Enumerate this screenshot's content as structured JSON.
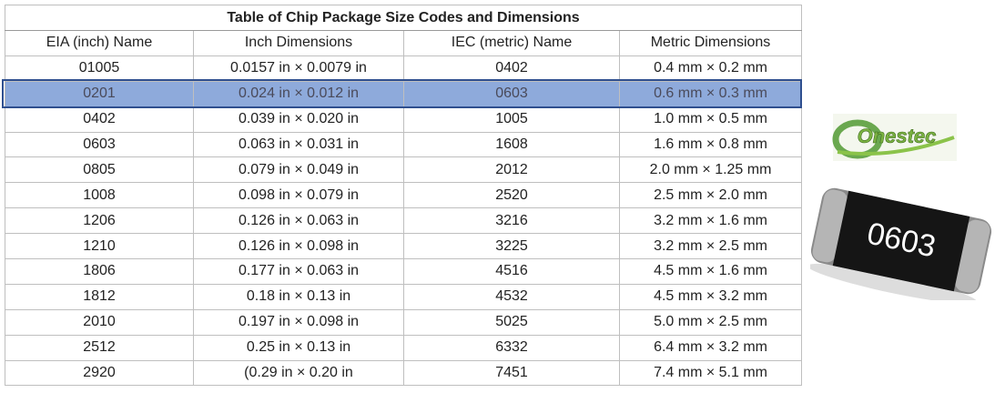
{
  "table": {
    "title": "Table of Chip Package Size Codes and Dimensions",
    "headers": [
      "EIA (inch) Name",
      "Inch Dimensions",
      "IEC (metric) Name",
      "Metric Dimensions"
    ],
    "rows": [
      [
        "01005",
        "0.0157 in × 0.0079 in",
        "0402",
        "0.4 mm × 0.2 mm"
      ],
      [
        "0201",
        "0.024 in × 0.012 in",
        "0603",
        "0.6 mm × 0.3 mm"
      ],
      [
        "0402",
        "0.039 in × 0.020 in",
        "1005",
        "1.0 mm × 0.5 mm"
      ],
      [
        "0603",
        "0.063 in × 0.031 in",
        "1608",
        "1.6 mm × 0.8 mm"
      ],
      [
        "0805",
        "0.079 in × 0.049 in",
        "2012",
        "2.0 mm × 1.25 mm"
      ],
      [
        "1008",
        "0.098 in × 0.079 in",
        "2520",
        "2.5 mm × 2.0 mm"
      ],
      [
        "1206",
        "0.126 in × 0.063 in",
        "3216",
        "3.2 mm × 1.6 mm"
      ],
      [
        "1210",
        "0.126 in × 0.098 in",
        "3225",
        "3.2 mm × 2.5 mm"
      ],
      [
        "1806",
        "0.177 in × 0.063 in",
        "4516",
        "4.5 mm × 1.6 mm"
      ],
      [
        "1812",
        "0.18 in × 0.13 in",
        "4532",
        "4.5 mm × 3.2 mm"
      ],
      [
        "2010",
        "0.197 in × 0.098 in",
        "5025",
        "5.0 mm × 2.5 mm"
      ],
      [
        "2512",
        "0.25 in × 0.13 in",
        "6332",
        "6.4 mm × 3.2 mm"
      ],
      [
        "2920",
        "(0.29 in × 0.20 in",
        "7451",
        "7.4 mm × 5.1 mm"
      ]
    ],
    "highlight_row": 1
  },
  "logo": {
    "text": "Onestec"
  },
  "chip": {
    "label": "0603"
  }
}
